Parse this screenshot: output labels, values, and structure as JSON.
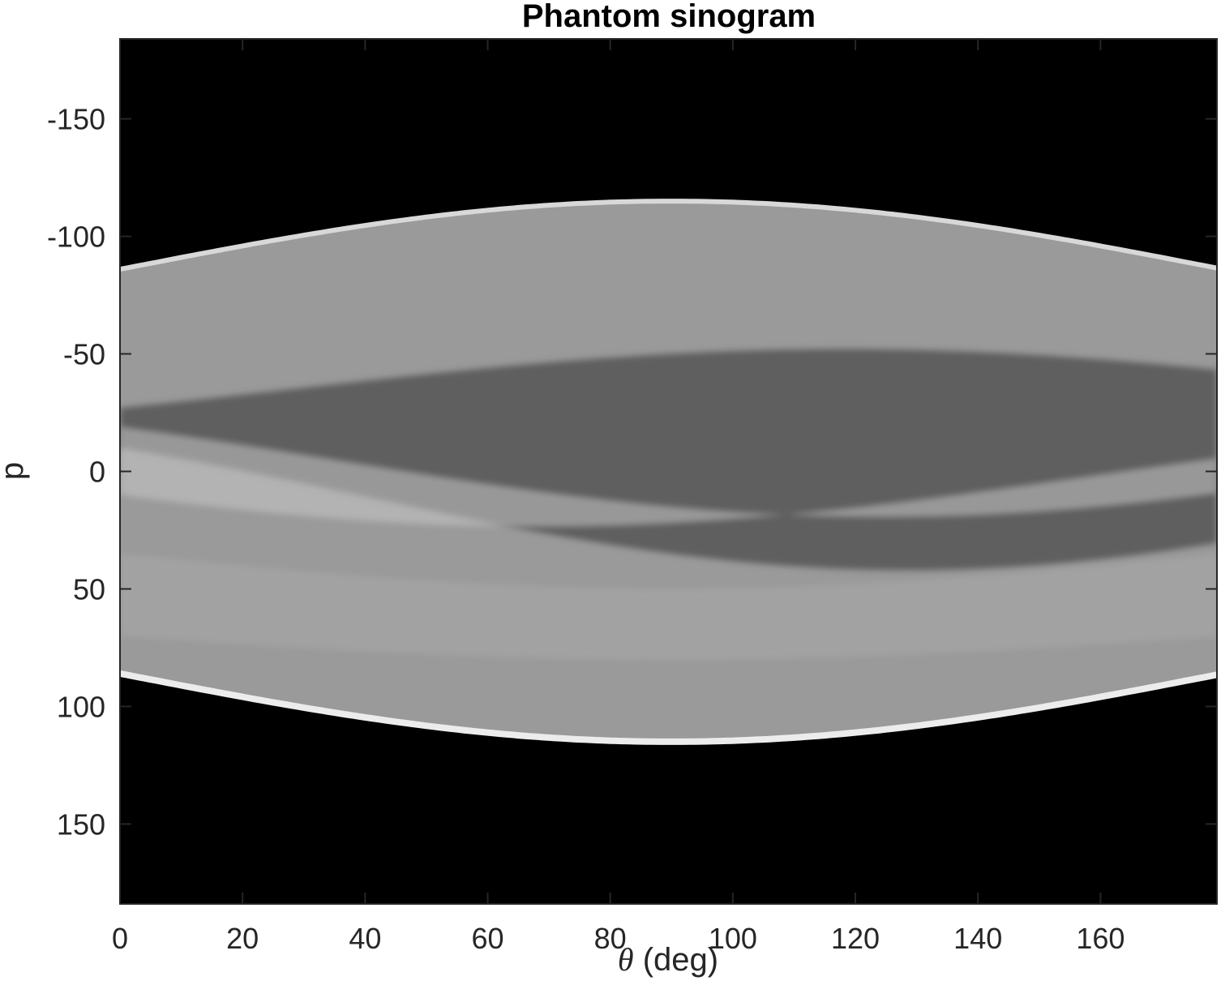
{
  "chart_data": {
    "type": "heatmap",
    "title": "Phantom sinogram",
    "xlabel_symbol": "θ",
    "xlabel_unit": " (deg)",
    "ylabel": "p",
    "colormap": "gray",
    "xlim": [
      0,
      179
    ],
    "ylim": [
      -184,
      184
    ],
    "y_reversed": true,
    "grid": false,
    "x_ticks": [
      0,
      20,
      40,
      60,
      80,
      100,
      120,
      140,
      160
    ],
    "x_tick_labels": [
      "0",
      "20",
      "40",
      "60",
      "80",
      "100",
      "120",
      "140",
      "160"
    ],
    "y_ticks": [
      -150,
      -100,
      -50,
      0,
      50,
      100,
      150
    ],
    "y_tick_labels": [
      "-150",
      "-100",
      "-50",
      "0",
      "50",
      "100",
      "150"
    ],
    "outer_boundary": {
      "theta_deg": [
        0,
        90,
        179
      ],
      "p_half_width": [
        86,
        115,
        86
      ]
    },
    "colors": {
      "background": "#000000",
      "axis": "#262626",
      "title": "#000000"
    }
  }
}
